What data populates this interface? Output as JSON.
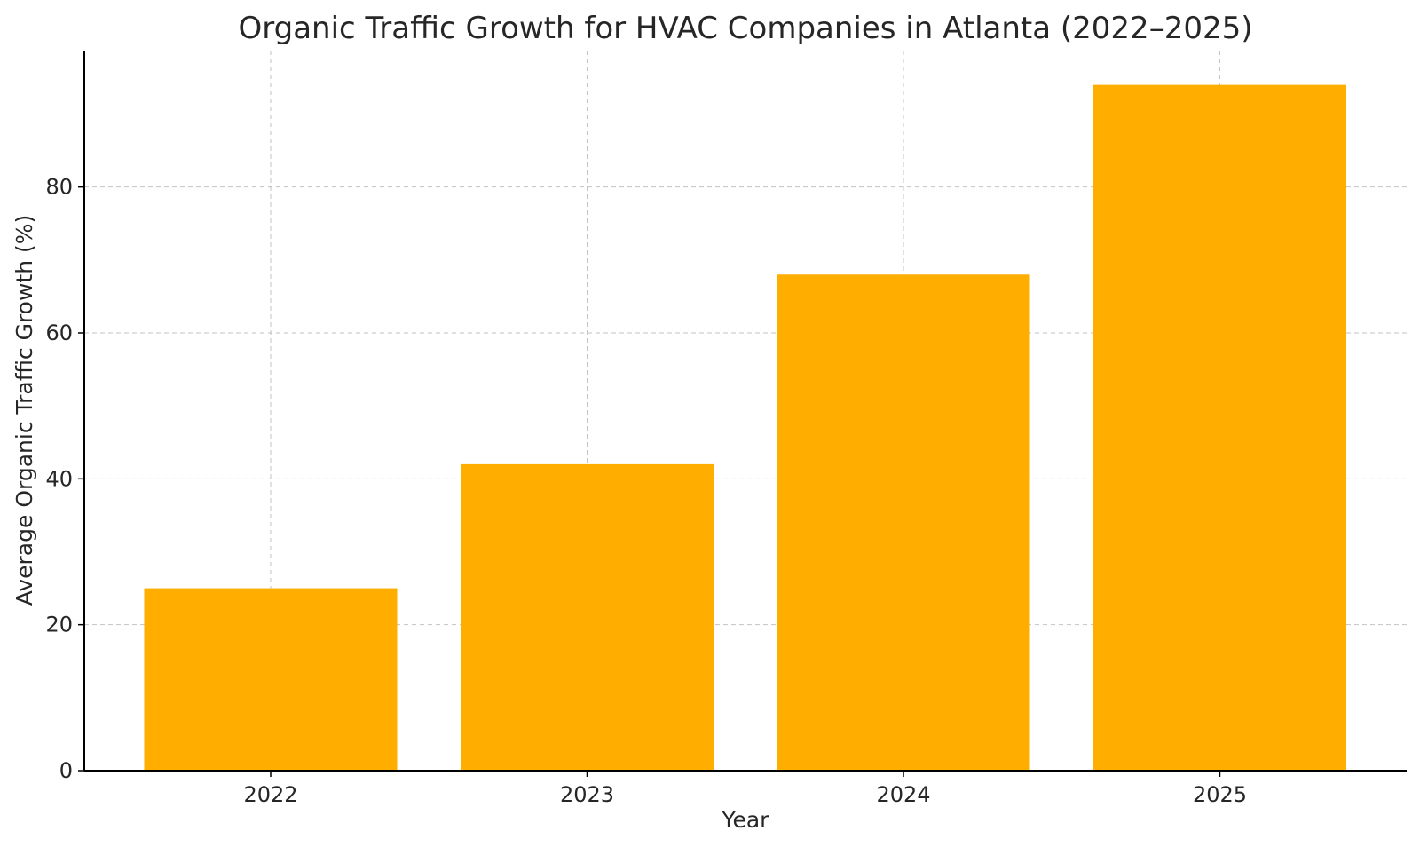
{
  "chart_data": {
    "type": "bar",
    "title": "Organic Traffic Growth for HVAC Companies in Atlanta (2022–2025)",
    "xlabel": "Year",
    "ylabel": "Average Organic Traffic Growth (%)",
    "categories": [
      "2022",
      "2023",
      "2024",
      "2025"
    ],
    "values": [
      25,
      42,
      68,
      94
    ],
    "ylim": [
      0,
      98.7
    ],
    "yticks": [
      0,
      20,
      40,
      60,
      80
    ],
    "grid": true,
    "bar_color": "#FFAE00"
  }
}
